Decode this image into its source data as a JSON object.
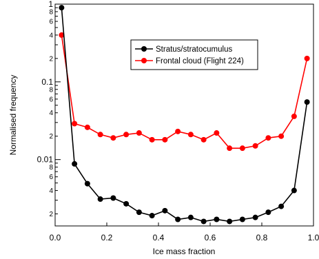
{
  "chart_data": {
    "type": "line",
    "xlabel": "Ice mass fraction",
    "ylabel": "Normalised frequency",
    "xlim": [
      0.0,
      1.0
    ],
    "ylim": [
      0.0014,
      1.0
    ],
    "yscale": "log",
    "grid": false,
    "legend_position": "top-center",
    "x_ticks": [
      {
        "value": 0.0,
        "label": "0.0"
      },
      {
        "value": 0.2,
        "label": "0.2"
      },
      {
        "value": 0.4,
        "label": "0.4"
      },
      {
        "value": 0.6,
        "label": "0.6"
      },
      {
        "value": 0.8,
        "label": "0.8"
      },
      {
        "value": 1.0,
        "label": "1.0"
      }
    ],
    "y_major_ticks": [
      {
        "value": 0.01,
        "label": "0.01"
      },
      {
        "value": 0.1,
        "label": "0.1"
      },
      {
        "value": 1.0,
        "label": "1"
      }
    ],
    "y_minor_labels": [
      {
        "value": 0.002,
        "label": "2"
      },
      {
        "value": 0.004,
        "label": "4"
      },
      {
        "value": 0.006,
        "label": "6"
      },
      {
        "value": 0.008,
        "label": "8"
      },
      {
        "value": 0.02,
        "label": "2"
      },
      {
        "value": 0.04,
        "label": "4"
      },
      {
        "value": 0.06,
        "label": "6"
      },
      {
        "value": 0.08,
        "label": "8"
      },
      {
        "value": 0.2,
        "label": "2"
      },
      {
        "value": 0.4,
        "label": "4"
      },
      {
        "value": 0.6,
        "label": "6"
      },
      {
        "value": 0.8,
        "label": "8"
      }
    ],
    "x": [
      0.025,
      0.075,
      0.125,
      0.175,
      0.225,
      0.275,
      0.325,
      0.375,
      0.425,
      0.475,
      0.525,
      0.575,
      0.625,
      0.675,
      0.725,
      0.775,
      0.825,
      0.875,
      0.925,
      0.975
    ],
    "series": [
      {
        "name": "Stratus/stratocumulus",
        "color": "#000000",
        "values": [
          0.9,
          0.0088,
          0.0049,
          0.0031,
          0.0032,
          0.0027,
          0.0021,
          0.0019,
          0.0022,
          0.0017,
          0.0018,
          0.0016,
          0.0017,
          0.0016,
          0.0017,
          0.0018,
          0.0021,
          0.0025,
          0.004,
          0.055
        ]
      },
      {
        "name": "Frontal cloud (Flight 224)",
        "color": "#ff0000",
        "values": [
          0.4,
          0.029,
          0.026,
          0.021,
          0.019,
          0.021,
          0.022,
          0.018,
          0.018,
          0.023,
          0.021,
          0.018,
          0.022,
          0.014,
          0.014,
          0.015,
          0.019,
          0.02,
          0.036,
          0.2
        ]
      }
    ]
  }
}
